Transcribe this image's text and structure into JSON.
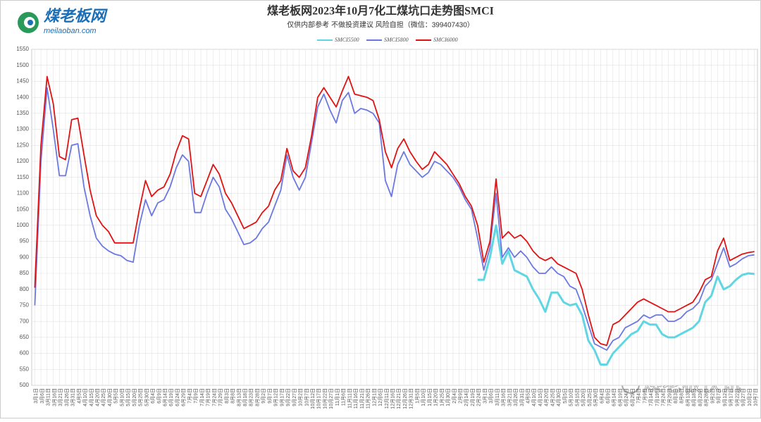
{
  "logo": {
    "name": "煤老板网",
    "url": "meilaoban.com"
  },
  "watermark": "煤老板快讯",
  "chart_data": {
    "type": "line",
    "title": "煤老板网2023年10月7化工煤坑口走势图SMCI",
    "subtitle": "仅供内部参考 不做投资建议 风险自担（微信：399407430）",
    "categories": [
      "3月1日",
      "3月6日",
      "3月11日",
      "3月16日",
      "3月21日",
      "3月26日",
      "3月31日",
      "4月5日",
      "4月10日",
      "4月15日",
      "4月20日",
      "4月25日",
      "4月30日",
      "5月5日",
      "5月10日",
      "5月15日",
      "5月20日",
      "5月25日",
      "5月30日",
      "6月4日",
      "6月9日",
      "6月14日",
      "6月19日",
      "6月24日",
      "6月29日",
      "7月4日",
      "7月9日",
      "7月14日",
      "7月19日",
      "7月24日",
      "7月29日",
      "8月3日",
      "8月8日",
      "8月13日",
      "8月18日",
      "8月23日",
      "8月28日",
      "9月2日",
      "9月7日",
      "9月12日",
      "9月17日",
      "9月22日",
      "9月27日",
      "10月2日",
      "10月7日",
      "10月12日",
      "10月17日",
      "10月22日",
      "10月27日",
      "11月1日",
      "11月6日",
      "11月11日",
      "11月16日",
      "11月21日",
      "11月26日",
      "12月1日",
      "12月6日",
      "12月11日",
      "12月16日",
      "12月21日",
      "12月26日",
      "12月31日",
      "1月5日",
      "1月10日",
      "1月15日",
      "1月20日",
      "1月25日",
      "1月30日",
      "2月4日",
      "2月9日",
      "2月14日",
      "2月19日",
      "2月24日",
      "3月1日",
      "3月6日",
      "3月11日",
      "3月16日",
      "3月21日",
      "3月26日",
      "3月31日",
      "4月5日",
      "4月10日",
      "4月15日",
      "4月20日",
      "4月25日",
      "4月30日",
      "5月5日",
      "5月10日",
      "5月15日",
      "5月20日",
      "5月25日",
      "5月30日",
      "6月4日",
      "6月9日",
      "6月14日",
      "6月19日",
      "6月24日",
      "6月29日",
      "7月4日",
      "7月9日",
      "7月14日",
      "7月19日",
      "7月24日",
      "7月29日",
      "8月3日",
      "8月8日",
      "8月13日",
      "8月18日",
      "8月23日",
      "8月28日",
      "9月2日",
      "9月7日",
      "9月12日",
      "9月17日",
      "9月22日",
      "9月27日",
      "10月2日",
      "10月7日"
    ],
    "series": [
      {
        "name": "SMCI5500",
        "color": "#5fd6e2",
        "values": [
          null,
          null,
          null,
          null,
          null,
          null,
          null,
          null,
          null,
          null,
          null,
          null,
          null,
          null,
          null,
          null,
          null,
          null,
          null,
          null,
          null,
          null,
          null,
          null,
          null,
          null,
          null,
          null,
          null,
          null,
          null,
          null,
          null,
          null,
          null,
          null,
          null,
          null,
          null,
          null,
          null,
          null,
          null,
          null,
          null,
          null,
          null,
          null,
          null,
          null,
          null,
          null,
          null,
          null,
          null,
          null,
          null,
          null,
          null,
          null,
          null,
          null,
          null,
          null,
          null,
          null,
          null,
          null,
          null,
          null,
          null,
          null,
          830,
          830,
          900,
          1000,
          880,
          920,
          860,
          850,
          840,
          800,
          770,
          730,
          790,
          790,
          760,
          750,
          755,
          720,
          640,
          610,
          565,
          565,
          600,
          620,
          640,
          660,
          670,
          700,
          690,
          690,
          660,
          650,
          650,
          660,
          670,
          680,
          700,
          760,
          780,
          840,
          800,
          810,
          830,
          845,
          850,
          848
        ]
      },
      {
        "name": "SMCI5800",
        "color": "#6b78e2",
        "values": [
          750,
          1200,
          1430,
          1300,
          1155,
          1155,
          1250,
          1255,
          1120,
          1030,
          960,
          935,
          920,
          910,
          905,
          890,
          885,
          1000,
          1080,
          1030,
          1070,
          1080,
          1120,
          1180,
          1220,
          1200,
          1040,
          1040,
          1100,
          1150,
          1120,
          1050,
          1020,
          980,
          940,
          945,
          960,
          990,
          1010,
          1060,
          1110,
          1220,
          1150,
          1110,
          1150,
          1260,
          1370,
          1410,
          1360,
          1320,
          1390,
          1415,
          1350,
          1365,
          1360,
          1350,
          1320,
          1140,
          1090,
          1190,
          1230,
          1190,
          1170,
          1150,
          1165,
          1200,
          1190,
          1170,
          1150,
          1120,
          1080,
          1050,
          960,
          860,
          930,
          1100,
          900,
          930,
          900,
          920,
          900,
          870,
          850,
          850,
          870,
          850,
          840,
          810,
          800,
          750,
          690,
          630,
          620,
          610,
          640,
          650,
          680,
          690,
          700,
          720,
          710,
          720,
          720,
          700,
          700,
          710,
          730,
          740,
          760,
          810,
          830,
          880,
          930,
          870,
          880,
          895,
          905,
          908
        ]
      },
      {
        "name": "SMCI6000",
        "color": "#e01212",
        "values": [
          805,
          1250,
          1465,
          1380,
          1215,
          1205,
          1330,
          1335,
          1220,
          1110,
          1030,
          1000,
          980,
          945,
          945,
          945,
          945,
          1050,
          1140,
          1090,
          1110,
          1120,
          1160,
          1230,
          1280,
          1270,
          1100,
          1090,
          1140,
          1190,
          1160,
          1100,
          1070,
          1030,
          990,
          1000,
          1010,
          1040,
          1060,
          1110,
          1140,
          1240,
          1170,
          1150,
          1180,
          1280,
          1400,
          1430,
          1400,
          1370,
          1420,
          1465,
          1410,
          1405,
          1400,
          1390,
          1330,
          1230,
          1180,
          1240,
          1270,
          1230,
          1200,
          1175,
          1190,
          1230,
          1210,
          1190,
          1160,
          1130,
          1090,
          1060,
          1000,
          885,
          950,
          1145,
          960,
          980,
          960,
          970,
          950,
          920,
          900,
          890,
          900,
          880,
          870,
          860,
          850,
          800,
          720,
          650,
          630,
          625,
          690,
          700,
          720,
          740,
          760,
          770,
          760,
          750,
          740,
          730,
          730,
          740,
          750,
          760,
          790,
          830,
          840,
          920,
          960,
          890,
          900,
          910,
          915,
          918
        ]
      }
    ],
    "ylim": [
      500,
      1550
    ],
    "yticks": [
      500,
      550,
      600,
      650,
      700,
      750,
      800,
      850,
      900,
      950,
      1000,
      1050,
      1100,
      1150,
      1200,
      1250,
      1300,
      1350,
      1400,
      1450,
      1500,
      1550
    ],
    "grid": true,
    "legend": "top"
  }
}
